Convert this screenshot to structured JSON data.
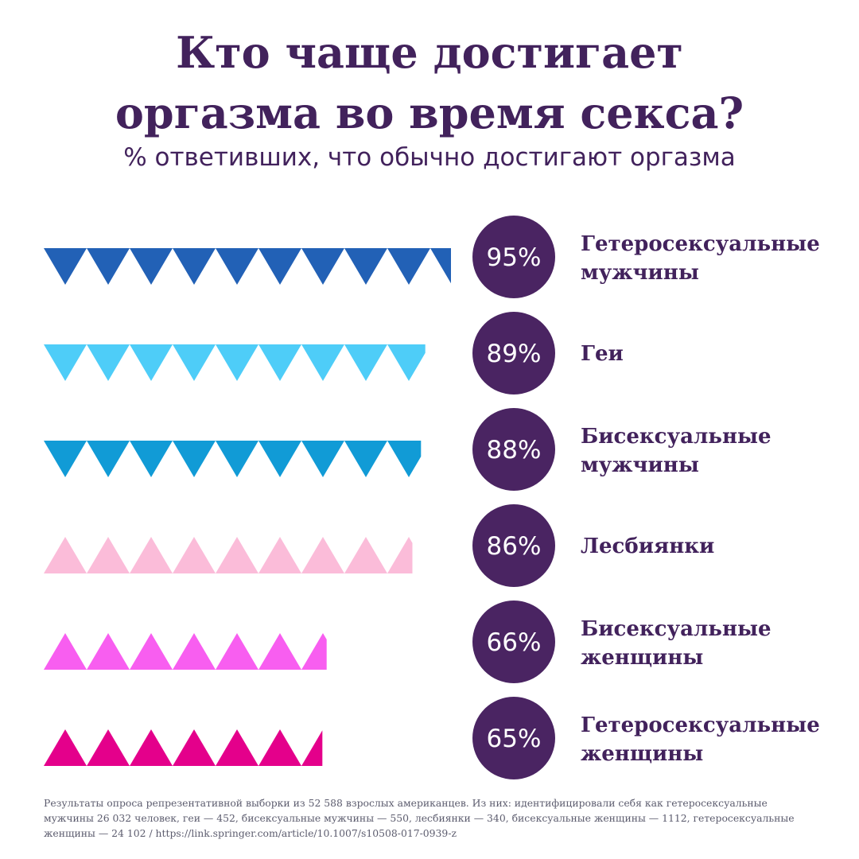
{
  "title": {
    "line1": "Кто чаще достигает",
    "line2": "оргазма во время секса?"
  },
  "subtitle": "% ответивших, что обычно достигают оргазма",
  "footnote": "Результаты опроса репрезентативной выборки из 52 588 взрослых американцев. Из них: идентифицировали себя как гетеросексуальные мужчины 26 032 человек, геи — 452, бисексуальные мужчины — 550, лесбиянки — 340, бисексуальные женщины — 1112, гетеросексуальные женщины — 24 102 / https://link.springer.com/article/10.1007/s10508-017-0939-z",
  "chart_data": {
    "type": "bar",
    "orientation": "horizontal",
    "title": "Кто чаще достигает оргазма во время секса?",
    "subtitle": "% ответивших, что обычно достигают оргазма",
    "unit": "%",
    "categories": [
      [
        "Гетеросексуальные",
        "мужчины"
      ],
      [
        "Геи"
      ],
      [
        "Бисексуальные",
        "мужчины"
      ],
      [
        "Лесбиянки"
      ],
      [
        "Бисексуальные",
        "женщины"
      ],
      [
        "Гетеросексуальные",
        "женщины"
      ]
    ],
    "values": [
      95,
      89,
      88,
      86,
      66,
      65
    ],
    "value_labels": [
      "95%",
      "89%",
      "88%",
      "86%",
      "66%",
      "65%"
    ],
    "triangle_direction": [
      "down",
      "down",
      "down",
      "up",
      "up",
      "up"
    ],
    "colors": [
      "#2261b6",
      "#4ecdf8",
      "#119bd6",
      "#fbbcd9",
      "#f85ef0",
      "#e4008b"
    ],
    "badge_color": "#4a2462",
    "label_color": "#42225c",
    "grid": false,
    "legend": "none"
  }
}
